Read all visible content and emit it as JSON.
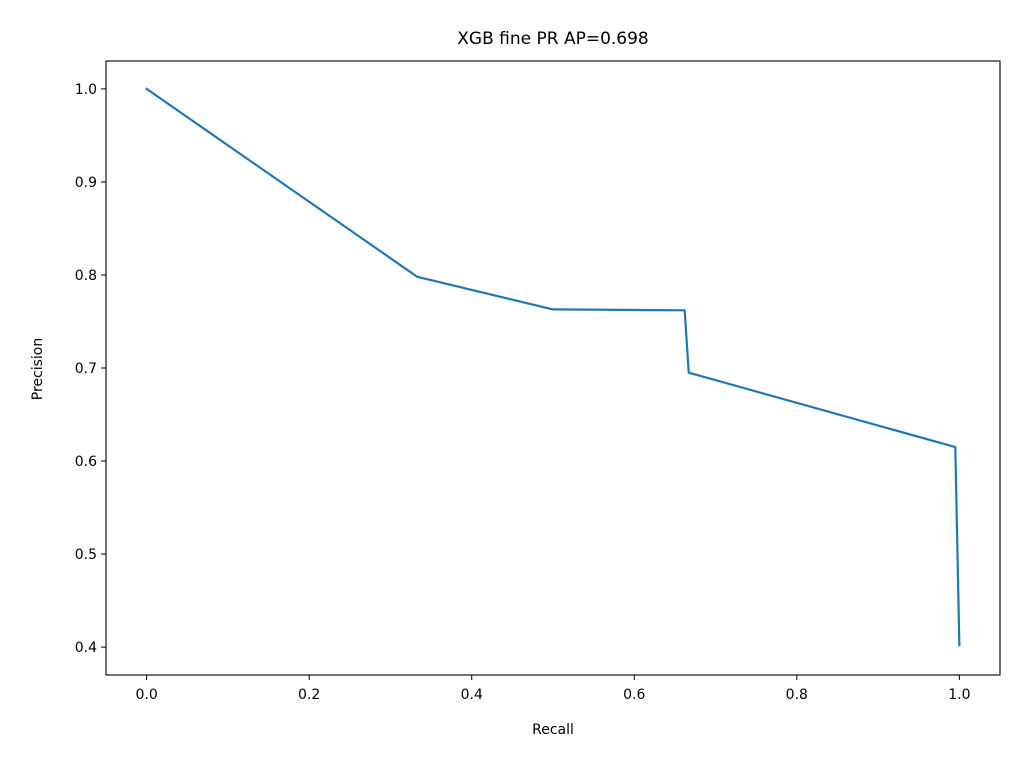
{
  "chart_data": {
    "type": "line",
    "title": "XGB fine PR AP=0.698",
    "xlabel": "Recall",
    "ylabel": "Precision",
    "xlim": [
      -0.05,
      1.05
    ],
    "ylim": [
      0.37,
      1.03
    ],
    "xticks": [
      0.0,
      0.2,
      0.4,
      0.6,
      0.8,
      1.0
    ],
    "xtick_labels": [
      "0.0",
      "0.2",
      "0.4",
      "0.6",
      "0.8",
      "1.0"
    ],
    "yticks": [
      0.4,
      0.5,
      0.6,
      0.7,
      0.8,
      0.9,
      1.0
    ],
    "ytick_labels": [
      "0.4",
      "0.5",
      "0.6",
      "0.7",
      "0.8",
      "0.9",
      "1.0"
    ],
    "grid": false,
    "legend": "none",
    "series": [
      {
        "color": "#1f77b4",
        "x": [
          0.0,
          0.333,
          0.5,
          0.662,
          0.667,
          0.995,
          1.0
        ],
        "y": [
          1.0,
          0.798,
          0.763,
          0.762,
          0.695,
          0.615,
          0.402
        ]
      }
    ]
  }
}
